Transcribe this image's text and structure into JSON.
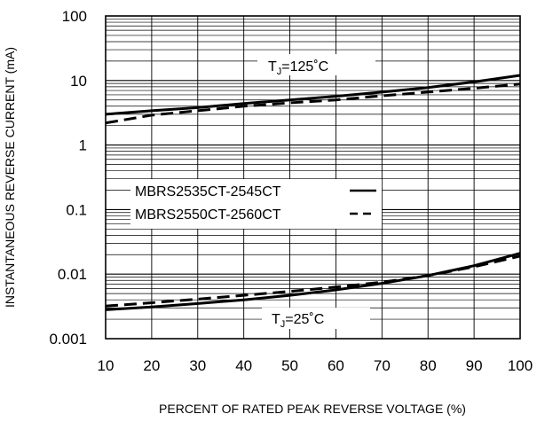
{
  "chart_data": {
    "type": "line",
    "xlabel": "PERCENT OF RATED PEAK REVERSE VOLTAGE (%)",
    "ylabel": "INSTANTANEOUS REVERSE CURRENT (mA)",
    "x_ticks": [
      "10",
      "20",
      "30",
      "40",
      "50",
      "60",
      "70",
      "80",
      "90",
      "100"
    ],
    "y_ticks": [
      "0.001",
      "0.01",
      "0.1",
      "1",
      "10",
      "100"
    ],
    "xlim": [
      10,
      100
    ],
    "ylim": [
      0.001,
      100
    ],
    "y_scale": "log",
    "grid": true,
    "legend": {
      "placement": "center-left",
      "entries": [
        {
          "label": "MBRS2535CT-2545CT",
          "style": "solid"
        },
        {
          "label": "MBRS2550CT-2560CT",
          "style": "dashed"
        }
      ]
    },
    "annotations": {
      "tj_high": {
        "prefix": "T",
        "sub": "J",
        "suffix": "=125˚C"
      },
      "tj_low": {
        "prefix": "T",
        "sub": "J",
        "suffix": "=25˚C"
      }
    },
    "series": [
      {
        "group": "TJ=125C",
        "style": "solid",
        "x": [
          10,
          20,
          30,
          40,
          50,
          60,
          70,
          80,
          90,
          100
        ],
        "y": [
          3.0,
          3.4,
          3.8,
          4.4,
          5.0,
          5.7,
          6.6,
          7.8,
          9.5,
          12.0
        ]
      },
      {
        "group": "TJ=125C",
        "style": "dashed",
        "x": [
          10,
          20,
          30,
          40,
          50,
          60,
          70,
          80,
          90,
          100
        ],
        "y": [
          2.2,
          2.9,
          3.4,
          4.0,
          4.5,
          5.0,
          5.8,
          6.6,
          7.6,
          8.8
        ]
      },
      {
        "group": "TJ=25C",
        "style": "solid",
        "x": [
          10,
          20,
          30,
          40,
          50,
          60,
          70,
          80,
          90,
          100
        ],
        "y": [
          0.0028,
          0.0031,
          0.0035,
          0.004,
          0.0047,
          0.0057,
          0.0072,
          0.0095,
          0.0135,
          0.021
        ]
      },
      {
        "group": "TJ=25C",
        "style": "dashed",
        "x": [
          10,
          20,
          30,
          40,
          50,
          60,
          70,
          80,
          90,
          100
        ],
        "y": [
          0.0032,
          0.0036,
          0.0041,
          0.0047,
          0.0054,
          0.0063,
          0.0075,
          0.0095,
          0.013,
          0.019
        ]
      }
    ]
  }
}
